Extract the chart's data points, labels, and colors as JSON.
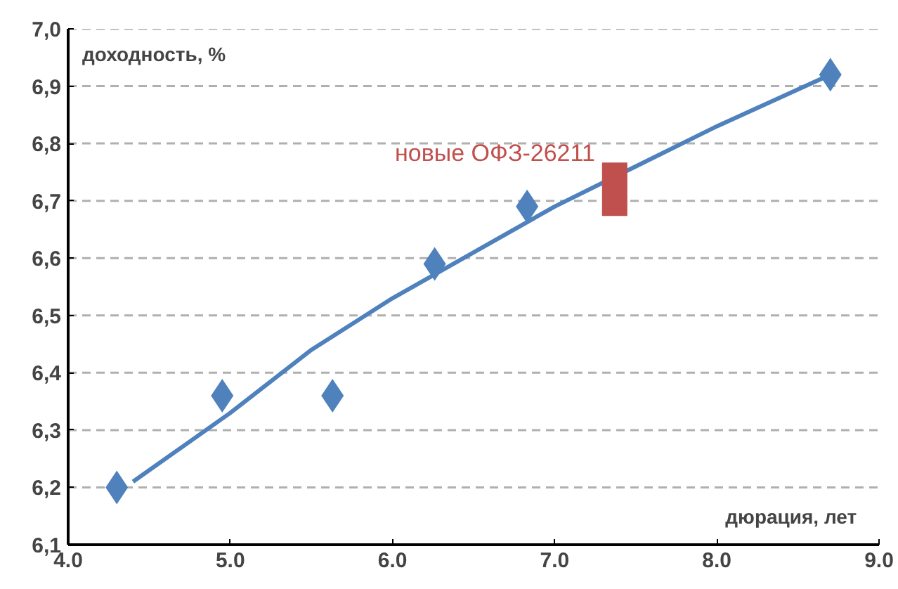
{
  "chart_data": {
    "type": "scatter",
    "xlabel": "дюрация,  лет",
    "ylabel": "доходность,  %",
    "xlim": [
      4.0,
      9.0
    ],
    "ylim": [
      6.1,
      7.0
    ],
    "xticks": [
      {
        "value": 4.0,
        "label": "4.0"
      },
      {
        "value": 5.0,
        "label": "5.0"
      },
      {
        "value": 6.0,
        "label": "6.0"
      },
      {
        "value": 7.0,
        "label": "7.0"
      },
      {
        "value": 8.0,
        "label": "8.0"
      },
      {
        "value": 9.0,
        "label": "9.0"
      }
    ],
    "yticks": [
      {
        "value": 6.1,
        "label": "6,1"
      },
      {
        "value": 6.2,
        "label": "6,2"
      },
      {
        "value": 6.3,
        "label": "6,3"
      },
      {
        "value": 6.4,
        "label": "6,4"
      },
      {
        "value": 6.5,
        "label": "6,5"
      },
      {
        "value": 6.6,
        "label": "6,6"
      },
      {
        "value": 6.7,
        "label": "6,7"
      },
      {
        "value": 6.8,
        "label": "6,8"
      },
      {
        "value": 6.9,
        "label": "6,9"
      },
      {
        "value": 7.0,
        "label": "7,0"
      }
    ],
    "grid": "y",
    "series": [
      {
        "type": "line",
        "color": "#4f81bd",
        "marker": "none",
        "line_style": "solid",
        "x": [
          4.4,
          5.0,
          5.5,
          6.0,
          6.5,
          7.0,
          7.5,
          8.0,
          8.7
        ],
        "values": [
          6.21,
          6.33,
          6.44,
          6.53,
          6.61,
          6.69,
          6.76,
          6.83,
          6.92
        ]
      },
      {
        "color": "#4f81bd",
        "marker": "diamond",
        "x": [
          4.3,
          4.95,
          5.63,
          6.26,
          6.83,
          8.7
        ],
        "values": [
          6.2,
          6.36,
          6.36,
          6.59,
          6.69,
          6.92
        ]
      },
      {
        "color": "#c0504d",
        "marker": "square",
        "x": [
          7.37
        ],
        "values": [
          6.72
        ]
      }
    ],
    "annotations": [
      {
        "text": "новые ОФЗ-26211",
        "x": 7.37,
        "y": 6.76
      }
    ]
  }
}
